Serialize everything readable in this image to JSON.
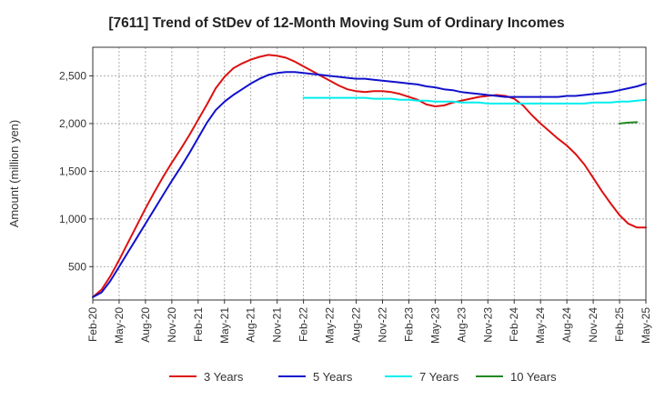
{
  "chart_data": {
    "type": "line",
    "title": "[7611]  Trend of StDev of 12-Month Moving Sum of Ordinary Incomes",
    "xlabel": "",
    "ylabel": "Amount (million yen)",
    "x_ticks": [
      "Feb-20",
      "May-20",
      "Aug-20",
      "Nov-20",
      "Feb-21",
      "May-21",
      "Aug-21",
      "Nov-21",
      "Feb-22",
      "May-22",
      "Aug-22",
      "Nov-22",
      "Feb-23",
      "May-23",
      "Aug-23",
      "Nov-23",
      "Feb-24",
      "May-24",
      "Aug-24",
      "Nov-24",
      "Feb-25",
      "May-25"
    ],
    "y_ticks": [
      500,
      1000,
      1500,
      2000,
      2500
    ],
    "y_tick_labels": [
      "500",
      "1,000",
      "1,500",
      "2,000",
      "2,500"
    ],
    "ylim": [
      150,
      2800
    ],
    "grid": true,
    "legend_position": "bottom",
    "series": [
      {
        "name": "3 Years",
        "color": "#dd1111",
        "start_month_index": 0,
        "values": [
          180,
          260,
          400,
          570,
          750,
          930,
          1110,
          1280,
          1440,
          1590,
          1730,
          1880,
          2040,
          2200,
          2370,
          2490,
          2580,
          2630,
          2670,
          2700,
          2720,
          2710,
          2690,
          2650,
          2600,
          2550,
          2500,
          2450,
          2400,
          2360,
          2340,
          2330,
          2340,
          2340,
          2330,
          2310,
          2280,
          2250,
          2200,
          2180,
          2190,
          2220,
          2240,
          2260,
          2280,
          2290,
          2300,
          2290,
          2260,
          2190,
          2090,
          2000,
          1920,
          1840,
          1770,
          1680,
          1570,
          1430,
          1290,
          1160,
          1040,
          950,
          910,
          910
        ]
      },
      {
        "name": "5 Years",
        "color": "#1111cc",
        "start_month_index": 0,
        "values": [
          180,
          230,
          350,
          500,
          650,
          800,
          950,
          1100,
          1250,
          1400,
          1540,
          1690,
          1850,
          2010,
          2140,
          2230,
          2300,
          2360,
          2420,
          2470,
          2510,
          2530,
          2540,
          2540,
          2530,
          2520,
          2510,
          2500,
          2490,
          2480,
          2470,
          2470,
          2460,
          2450,
          2440,
          2430,
          2420,
          2410,
          2390,
          2380,
          2360,
          2350,
          2330,
          2320,
          2310,
          2300,
          2290,
          2280,
          2280,
          2280,
          2280,
          2280,
          2280,
          2280,
          2290,
          2290,
          2300,
          2310,
          2320,
          2330,
          2350,
          2370,
          2390,
          2420
        ]
      },
      {
        "name": "7 Years",
        "color": "#00eeee",
        "start_month_index": 24,
        "values": [
          2270,
          2270,
          2270,
          2270,
          2270,
          2270,
          2270,
          2270,
          2260,
          2260,
          2260,
          2250,
          2250,
          2240,
          2240,
          2230,
          2230,
          2230,
          2220,
          2220,
          2220,
          2210,
          2210,
          2210,
          2210,
          2210,
          2210,
          2210,
          2210,
          2210,
          2210,
          2210,
          2210,
          2220,
          2220,
          2220,
          2230,
          2230,
          2240,
          2250
        ]
      },
      {
        "name": "10 Years",
        "color": "#228822",
        "start_month_index": 60,
        "values": [
          2000,
          2010,
          2015
        ]
      }
    ]
  }
}
